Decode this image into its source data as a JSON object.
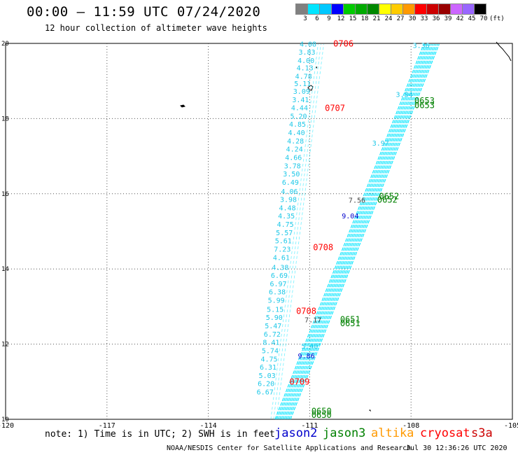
{
  "header": {
    "title": "00:00 – 11:59 UTC 07/24/2020",
    "subtitle": "12 hour collection of altimeter wave heights"
  },
  "colorbar": {
    "labels": [
      "3",
      "6",
      "9",
      "12",
      "15",
      "18",
      "21",
      "24",
      "27",
      "30",
      "33",
      "36",
      "39",
      "42",
      "45",
      "70",
      "(ft)"
    ],
    "colors": [
      "#808080",
      "#00e5ff",
      "#00c8ff",
      "#0000ff",
      "#00cc00",
      "#00aa00",
      "#008800",
      "#ffff00",
      "#ffcc00",
      "#ff9900",
      "#ff0000",
      "#cc0000",
      "#990000",
      "#cc66ff",
      "#9966ff",
      "#000000"
    ]
  },
  "chart_data": {
    "type": "scatter",
    "title": "12 hour collection of altimeter wave heights",
    "xlim": [
      -120,
      -105
    ],
    "ylim": [
      10,
      20
    ],
    "xticks": [
      "-120",
      "-117",
      "-114",
      "-111",
      "-108",
      "-105"
    ],
    "yticks": [
      "20",
      "18",
      "16",
      "14",
      "12",
      "10"
    ],
    "grid": true,
    "tracks": [
      {
        "name": "west track",
        "color": "#00e5ff",
        "points": [
          {
            "x": -110.8,
            "y": 19.92,
            "swh": "4.08"
          },
          {
            "x": -110.83,
            "y": 19.7,
            "swh": "3.83"
          },
          {
            "x": -110.86,
            "y": 19.48,
            "swh": "4.00"
          },
          {
            "x": -110.89,
            "y": 19.28,
            "swh": "4.13"
          },
          {
            "x": -110.93,
            "y": 19.06,
            "swh": "4.78"
          },
          {
            "x": -110.96,
            "y": 18.86,
            "swh": "5.11"
          },
          {
            "x": -110.99,
            "y": 18.66,
            "swh": "3.09"
          },
          {
            "x": -111.02,
            "y": 18.44,
            "swh": "3.41"
          },
          {
            "x": -111.05,
            "y": 18.22,
            "swh": "4.44"
          },
          {
            "x": -111.08,
            "y": 18.0,
            "swh": "5.20"
          },
          {
            "x": -111.11,
            "y": 17.78,
            "swh": "4.85"
          },
          {
            "x": -111.14,
            "y": 17.56,
            "swh": "4.40"
          },
          {
            "x": -111.17,
            "y": 17.34,
            "swh": "4.28"
          },
          {
            "x": -111.2,
            "y": 17.12,
            "swh": "4.24"
          },
          {
            "x": -111.23,
            "y": 16.9,
            "swh": "4.66"
          },
          {
            "x": -111.26,
            "y": 16.68,
            "swh": "3.78"
          },
          {
            "x": -111.29,
            "y": 16.46,
            "swh": "3.50"
          },
          {
            "x": -111.32,
            "y": 16.24,
            "swh": "6.49"
          },
          {
            "x": -111.35,
            "y": 16.0,
            "swh": "4.06"
          },
          {
            "x": -111.38,
            "y": 15.78,
            "swh": "3.98"
          },
          {
            "x": -111.41,
            "y": 15.56,
            "swh": "4.48"
          },
          {
            "x": -111.44,
            "y": 15.34,
            "swh": "4.35"
          },
          {
            "x": -111.47,
            "y": 15.12,
            "swh": "4.75"
          },
          {
            "x": -111.5,
            "y": 14.9,
            "swh": "5.57"
          },
          {
            "x": -111.53,
            "y": 14.68,
            "swh": "5.61"
          },
          {
            "x": -111.56,
            "y": 14.46,
            "swh": "7.23"
          },
          {
            "x": -111.59,
            "y": 14.24,
            "swh": "4.61"
          },
          {
            "x": -111.62,
            "y": 13.98,
            "swh": "4.38"
          },
          {
            "x": -111.65,
            "y": 13.76,
            "swh": "6.69"
          },
          {
            "x": -111.68,
            "y": 13.54,
            "swh": "6.97"
          },
          {
            "x": -111.71,
            "y": 13.32,
            "swh": "6.38"
          },
          {
            "x": -111.74,
            "y": 13.1,
            "swh": "5.99"
          },
          {
            "x": -111.77,
            "y": 12.86,
            "swh": "5.15"
          },
          {
            "x": -111.8,
            "y": 12.64,
            "swh": "5.90"
          },
          {
            "x": -111.83,
            "y": 12.42,
            "swh": "5.47"
          },
          {
            "x": -111.86,
            "y": 12.2,
            "swh": "6.72"
          },
          {
            "x": -111.89,
            "y": 11.98,
            "swh": "8.41"
          },
          {
            "x": -111.92,
            "y": 11.76,
            "swh": "5.74"
          },
          {
            "x": -111.95,
            "y": 11.54,
            "swh": "4.75"
          },
          {
            "x": -111.98,
            "y": 11.32,
            "swh": "6.31"
          },
          {
            "x": -112.01,
            "y": 11.1,
            "swh": "5.03"
          },
          {
            "x": -112.04,
            "y": 10.88,
            "swh": "6.20"
          },
          {
            "x": -112.07,
            "y": 10.66,
            "swh": "6.67"
          }
        ]
      },
      {
        "name": "east track",
        "color": "#00e5ff",
        "points": [
          {
            "x": -107.7,
            "y": 19.88,
            "swh": "3.36"
          },
          {
            "x": -108.2,
            "y": 18.58,
            "swh": "3.84"
          },
          {
            "x": -108.9,
            "y": 17.28,
            "swh": "3.97"
          },
          {
            "x": -109.6,
            "y": 15.76,
            "swh": "7.56"
          },
          {
            "x": -109.8,
            "y": 15.34,
            "swh": "9.04"
          },
          {
            "x": -110.9,
            "y": 12.58,
            "swh": "7.17"
          },
          {
            "x": -111.0,
            "y": 11.88,
            "swh": "5.40"
          },
          {
            "x": -111.1,
            "y": 11.62,
            "swh": "9.86"
          }
        ]
      }
    ],
    "time_labels": [
      {
        "text": "0706",
        "color": "#ff0000",
        "x": -110.3,
        "y": 19.92
      },
      {
        "text": "0707",
        "color": "#ff0000",
        "x": -110.55,
        "y": 18.2
      },
      {
        "text": "0708",
        "color": "#ff0000",
        "x": -110.9,
        "y": 14.5
      },
      {
        "text": "0708",
        "color": "#ff0000",
        "x": -111.4,
        "y": 12.8
      },
      {
        "text": "0709",
        "color": "#ff0000",
        "x": -111.6,
        "y": 10.92
      },
      {
        "text": "0653",
        "color": "#008000",
        "x": -107.9,
        "y": 18.4
      },
      {
        "text": "0653",
        "color": "#008000",
        "x": -107.9,
        "y": 18.28
      },
      {
        "text": "0652",
        "color": "#008000",
        "x": -108.95,
        "y": 15.86
      },
      {
        "text": "0652",
        "color": "#008000",
        "x": -109.0,
        "y": 15.76
      },
      {
        "text": "0651",
        "color": "#008000",
        "x": -110.1,
        "y": 12.58
      },
      {
        "text": "0651",
        "color": "#008000",
        "x": -110.1,
        "y": 12.48
      },
      {
        "text": "0650",
        "color": "#008000",
        "x": -110.95,
        "y": 10.14
      },
      {
        "text": "0650",
        "color": "#008000",
        "x": -110.95,
        "y": 10.04
      }
    ]
  },
  "note": "note: 1) Time is in UTC; 2) SWH is in feet",
  "legend": [
    {
      "name": "jason2",
      "color": "#0000cc"
    },
    {
      "name": "jason3",
      "color": "#008000"
    },
    {
      "name": "altika",
      "color": "#ff9900"
    },
    {
      "name": "cryosat",
      "color": "#ff0000"
    },
    {
      "name": "s3a",
      "color": "#cc0000"
    }
  ],
  "footer": {
    "credit": "NOAA/NESDIS Center for Satellite Applications and Research",
    "date": "Jul 30 12:36:26 UTC 2020"
  }
}
